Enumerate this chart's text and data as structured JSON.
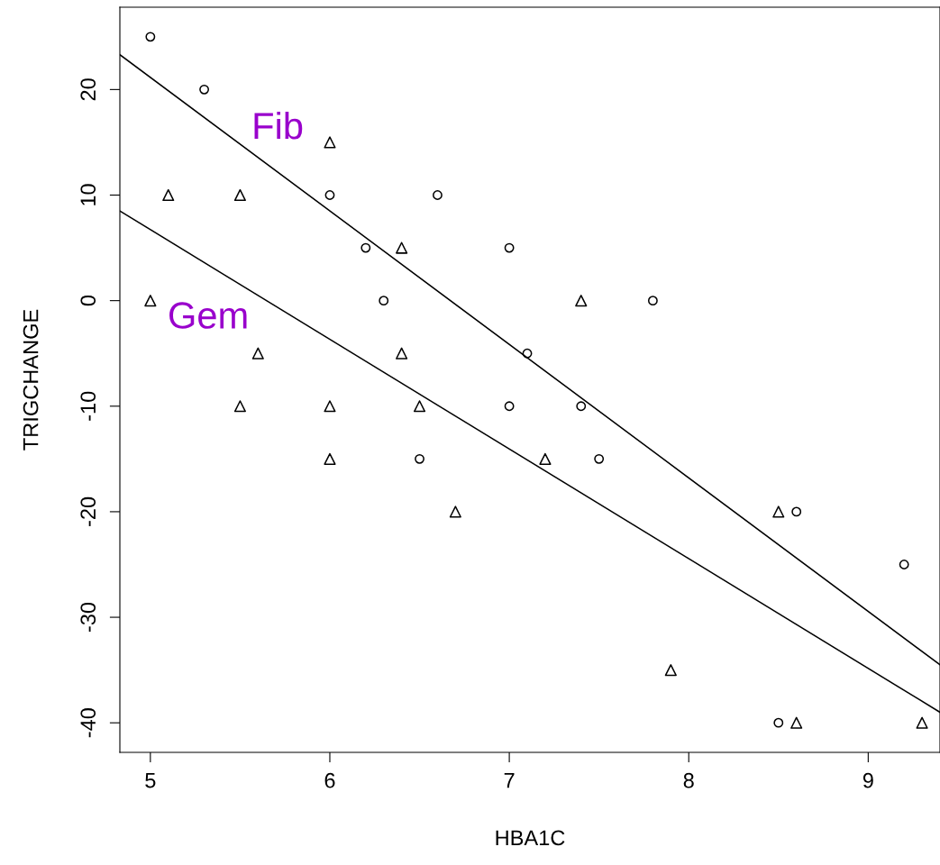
{
  "chart_data": {
    "type": "scatter",
    "xlabel": "HBA1C",
    "ylabel": "TRIGCHANGE",
    "xlim": [
      4.83,
      9.4
    ],
    "ylim": [
      -42.8,
      27.8
    ],
    "xticks": [
      5,
      6,
      7,
      8,
      9
    ],
    "yticks": [
      -40,
      -30,
      -20,
      -10,
      0,
      10,
      20
    ],
    "grid": false,
    "legend": false,
    "series": [
      {
        "marker": "circle",
        "color": "#000000",
        "x": [
          5,
          5.3,
          6,
          6.2,
          6.3,
          6.6,
          7,
          7,
          6.5,
          7.1,
          7.4,
          7.5,
          7.8,
          8.6,
          9.2,
          8.5
        ],
        "values": [
          25,
          20,
          10,
          5,
          0,
          10,
          5,
          -10,
          -15,
          -5,
          -10,
          -15,
          0,
          -20,
          -25,
          -40
        ]
      },
      {
        "marker": "triangle",
        "color": "#000000",
        "x": [
          5,
          5.1,
          5.5,
          5.5,
          5.6,
          6,
          6,
          6,
          6.4,
          6.4,
          6.5,
          6.7,
          7.2,
          7.4,
          7.9,
          8.5,
          8.6,
          9.3
        ],
        "values": [
          0,
          10,
          10,
          -10,
          -5,
          15,
          -10,
          -15,
          5,
          -5,
          -10,
          -20,
          -15,
          0,
          -35,
          -20,
          -40,
          -40
        ]
      },
      {
        "type": "line",
        "name": "Fib",
        "marker": "none",
        "line_style": "solid",
        "color": "#000000",
        "x": [
          4.83,
          9.4
        ],
        "values": [
          23.3,
          -34.5
        ]
      },
      {
        "type": "line",
        "name": "Gem",
        "marker": "none",
        "line_style": "solid",
        "color": "#000000",
        "x": [
          4.83,
          9.4
        ],
        "values": [
          8.5,
          -39.0
        ]
      }
    ]
  }
}
